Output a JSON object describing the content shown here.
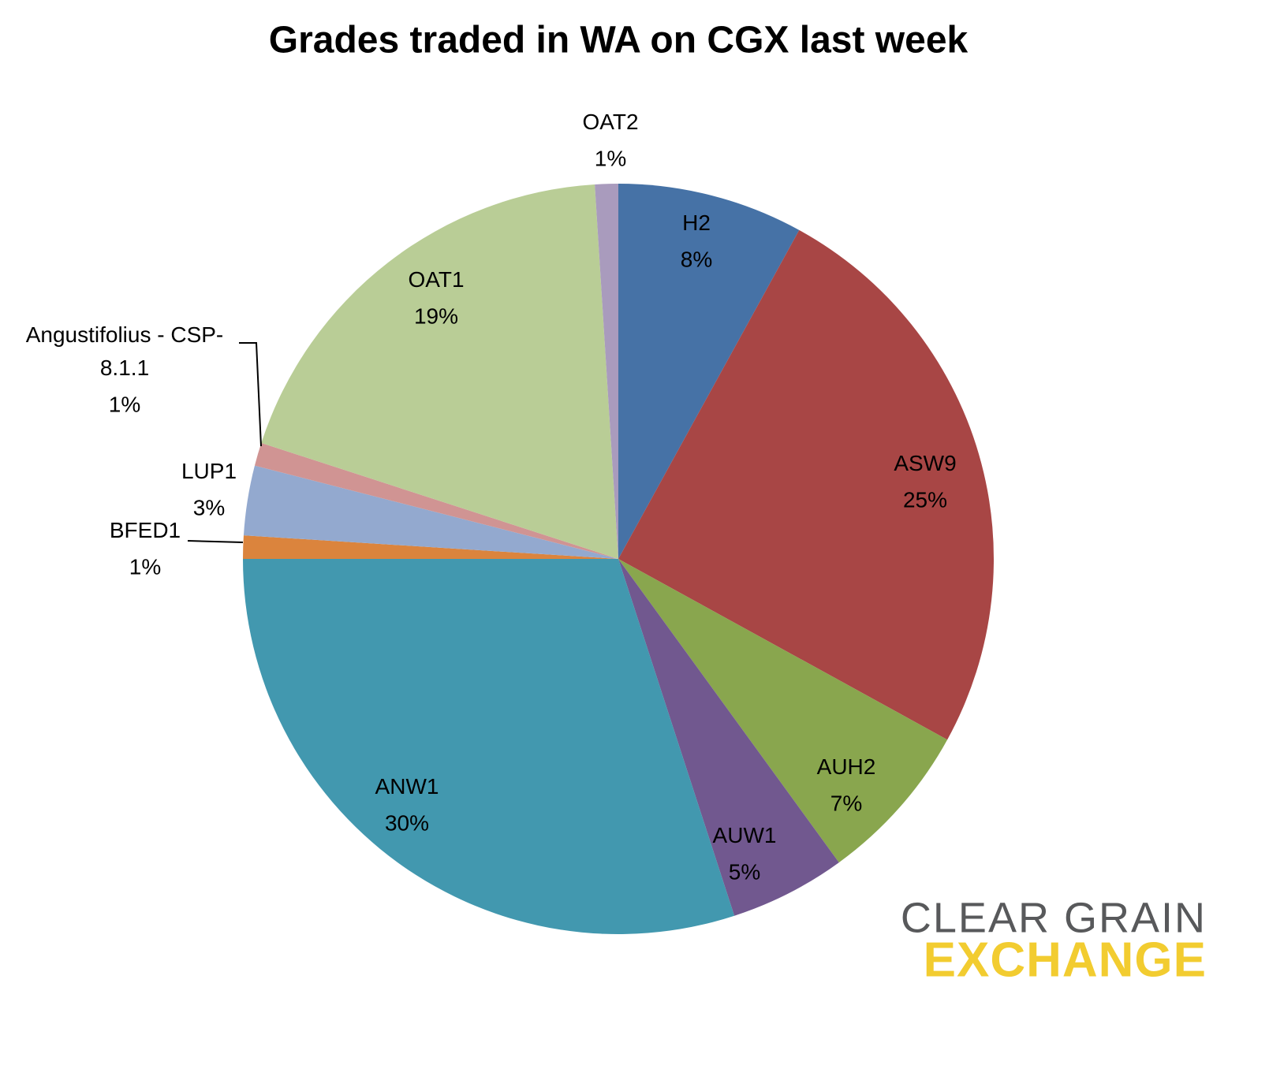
{
  "chart_data": {
    "type": "pie",
    "title": "Grades traded in WA on CGX last week",
    "categories": [
      "H2",
      "ASW9",
      "AUH2",
      "AUW1",
      "ANW1",
      "BFED1",
      "LUP1",
      "Angustifolius - CSP-8.1.1",
      "OAT1",
      "OAT2"
    ],
    "values": [
      8,
      25,
      7,
      5,
      30,
      1,
      3,
      1,
      19,
      1
    ],
    "value_labels": [
      "8%",
      "25%",
      "7%",
      "5%",
      "30%",
      "1%",
      "3%",
      "1%",
      "19%",
      "1%"
    ],
    "colors": [
      "#4672a6",
      "#a84645",
      "#89a64e",
      "#71588f",
      "#4298af",
      "#db843d",
      "#93a9cf",
      "#d09493",
      "#b9cd96",
      "#a99bbd"
    ],
    "logo": {
      "top": "CLEAR GRAIN",
      "bottom": "EXCHANGE"
    }
  }
}
